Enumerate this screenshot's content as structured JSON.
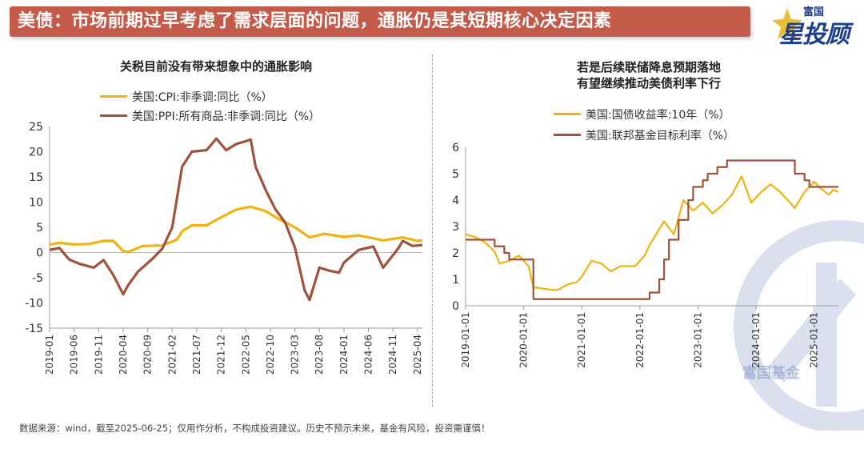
{
  "header": {
    "title": "美债：市场前期过早考虑了需求层面的问题，通胀仍是其短期核心决定因素"
  },
  "logo": {
    "top_text": "富国",
    "main_text": "星投顾"
  },
  "watermark_text": "富国基金",
  "footer": {
    "text": "数据来源：wind，截至2025-06-25；仅用作分析，不构成投资建议。历史不预示未来，基金有风险，投资需谨慎！"
  },
  "colors": {
    "header_bg": "#c45a4a",
    "series_gold": "#f2b20f",
    "series_brown": "#a0523a",
    "logo_blue": "#1d3e8a"
  },
  "chart_data": [
    {
      "type": "line",
      "title": "关税目前没有带来想象中的通胀影响",
      "xlabel": "",
      "ylabel": "",
      "ylim": [
        -15,
        25
      ],
      "yticks": [
        25,
        20,
        15,
        10,
        5,
        0,
        -5,
        -10,
        -15
      ],
      "xticks": [
        "2019-01",
        "2019-06",
        "2019-11",
        "2020-04",
        "2020-09",
        "2021-02",
        "2021-07",
        "2021-12",
        "2022-05",
        "2022-10",
        "2023-03",
        "2023-08",
        "2024-01",
        "2024-06",
        "2024-11",
        "2025-04"
      ],
      "x_start": "2019-01",
      "x_end": "2025-05",
      "grid": false,
      "legend": "top-left",
      "series": [
        {
          "name": "美国:CPI:非季调:同比（%）",
          "color": "#f2b20f",
          "x": [
            "2019-01",
            "2019-03",
            "2019-06",
            "2019-09",
            "2019-12",
            "2020-02",
            "2020-04",
            "2020-05",
            "2020-08",
            "2020-12",
            "2021-03",
            "2021-04",
            "2021-06",
            "2021-09",
            "2021-12",
            "2022-03",
            "2022-06",
            "2022-09",
            "2022-12",
            "2023-03",
            "2023-06",
            "2023-09",
            "2024-01",
            "2024-04",
            "2024-06",
            "2024-09",
            "2025-01",
            "2025-04",
            "2025-05"
          ],
          "values": [
            1.6,
            1.9,
            1.6,
            1.7,
            2.3,
            2.3,
            0.3,
            0.1,
            1.3,
            1.4,
            2.6,
            4.2,
            5.4,
            5.4,
            7.0,
            8.5,
            9.1,
            8.2,
            6.5,
            5.0,
            3.0,
            3.7,
            3.1,
            3.4,
            3.0,
            2.4,
            3.0,
            2.3,
            2.4
          ]
        },
        {
          "name": "美国:PPI:所有商品:非季调:同比（%）",
          "color": "#a0523a",
          "x": [
            "2019-01",
            "2019-03",
            "2019-05",
            "2019-07",
            "2019-10",
            "2019-12",
            "2020-02",
            "2020-04",
            "2020-05",
            "2020-07",
            "2020-10",
            "2020-12",
            "2021-02",
            "2021-04",
            "2021-06",
            "2021-09",
            "2021-11",
            "2022-01",
            "2022-03",
            "2022-06",
            "2022-07",
            "2022-09",
            "2022-11",
            "2023-01",
            "2023-03",
            "2023-05",
            "2023-06",
            "2023-08",
            "2023-10",
            "2023-12",
            "2024-01",
            "2024-04",
            "2024-07",
            "2024-09",
            "2024-12",
            "2025-01",
            "2025-03",
            "2025-05"
          ],
          "values": [
            0.5,
            0.9,
            -1.4,
            -2.2,
            -3.0,
            -1.5,
            -4.5,
            -8.3,
            -6.5,
            -3.8,
            -1.2,
            0.8,
            5.0,
            17.0,
            20.0,
            20.3,
            22.6,
            20.3,
            21.5,
            22.4,
            17.0,
            12.5,
            8.6,
            6.0,
            1.0,
            -7.5,
            -9.4,
            -3.0,
            -3.6,
            -4.0,
            -2.0,
            0.5,
            1.2,
            -3.0,
            0.7,
            2.3,
            1.3,
            1.5
          ]
        }
      ]
    },
    {
      "type": "line",
      "title": "若是后续联储降息预期落地\n有望继续推动美债利率下行",
      "xlabel": "",
      "ylabel": "",
      "ylim": [
        0,
        6
      ],
      "yticks": [
        6,
        5,
        4,
        3,
        2,
        1,
        0
      ],
      "xticks": [
        "2019-01-01",
        "2020-01-01",
        "2021-01-01",
        "2022-01-01",
        "2023-01-01",
        "2024-01-01",
        "2025-01-01"
      ],
      "x_start": "2019-01",
      "x_end": "2025-06",
      "grid": false,
      "legend": "top-left",
      "series": [
        {
          "name": "美国:国债收益率:10年（%）",
          "color": "#f2b20f",
          "x": [
            "2019-01",
            "2019-03",
            "2019-05",
            "2019-07",
            "2019-08",
            "2019-10",
            "2019-12",
            "2020-02",
            "2020-03",
            "2020-05",
            "2020-07",
            "2020-08",
            "2020-10",
            "2020-12",
            "2021-01",
            "2021-03",
            "2021-05",
            "2021-07",
            "2021-09",
            "2021-12",
            "2022-02",
            "2022-03",
            "2022-05",
            "2022-06",
            "2022-08",
            "2022-10",
            "2022-12",
            "2023-02",
            "2023-04",
            "2023-06",
            "2023-08",
            "2023-10",
            "2023-12",
            "2024-02",
            "2024-04",
            "2024-06",
            "2024-08",
            "2024-09",
            "2024-11",
            "2025-01",
            "2025-02",
            "2025-04",
            "2025-05",
            "2025-06"
          ],
          "values": [
            2.7,
            2.6,
            2.4,
            2.05,
            1.6,
            1.7,
            1.9,
            1.5,
            0.7,
            0.65,
            0.6,
            0.6,
            0.8,
            0.9,
            1.1,
            1.7,
            1.6,
            1.3,
            1.5,
            1.5,
            1.9,
            2.3,
            2.9,
            3.2,
            2.7,
            4.0,
            3.6,
            3.9,
            3.5,
            3.8,
            4.2,
            4.9,
            3.9,
            4.3,
            4.6,
            4.3,
            3.9,
            3.7,
            4.3,
            4.7,
            4.5,
            4.2,
            4.4,
            4.3
          ]
        },
        {
          "name": "美国:联邦基金目标利率（%）",
          "color": "#a0523a",
          "x": [
            "2019-01",
            "2019-07",
            "2019-09",
            "2019-10",
            "2020-03",
            "2022-03",
            "2022-05",
            "2022-06",
            "2022-07",
            "2022-09",
            "2022-11",
            "2022-12",
            "2023-02",
            "2023-03",
            "2023-05",
            "2023-07",
            "2024-09",
            "2024-11",
            "2024-12",
            "2025-06"
          ],
          "values": [
            2.5,
            2.25,
            2.0,
            1.75,
            0.25,
            0.5,
            1.0,
            1.75,
            2.5,
            3.25,
            4.0,
            4.5,
            4.75,
            5.0,
            5.25,
            5.5,
            5.0,
            4.75,
            4.5,
            4.5
          ]
        }
      ]
    }
  ]
}
